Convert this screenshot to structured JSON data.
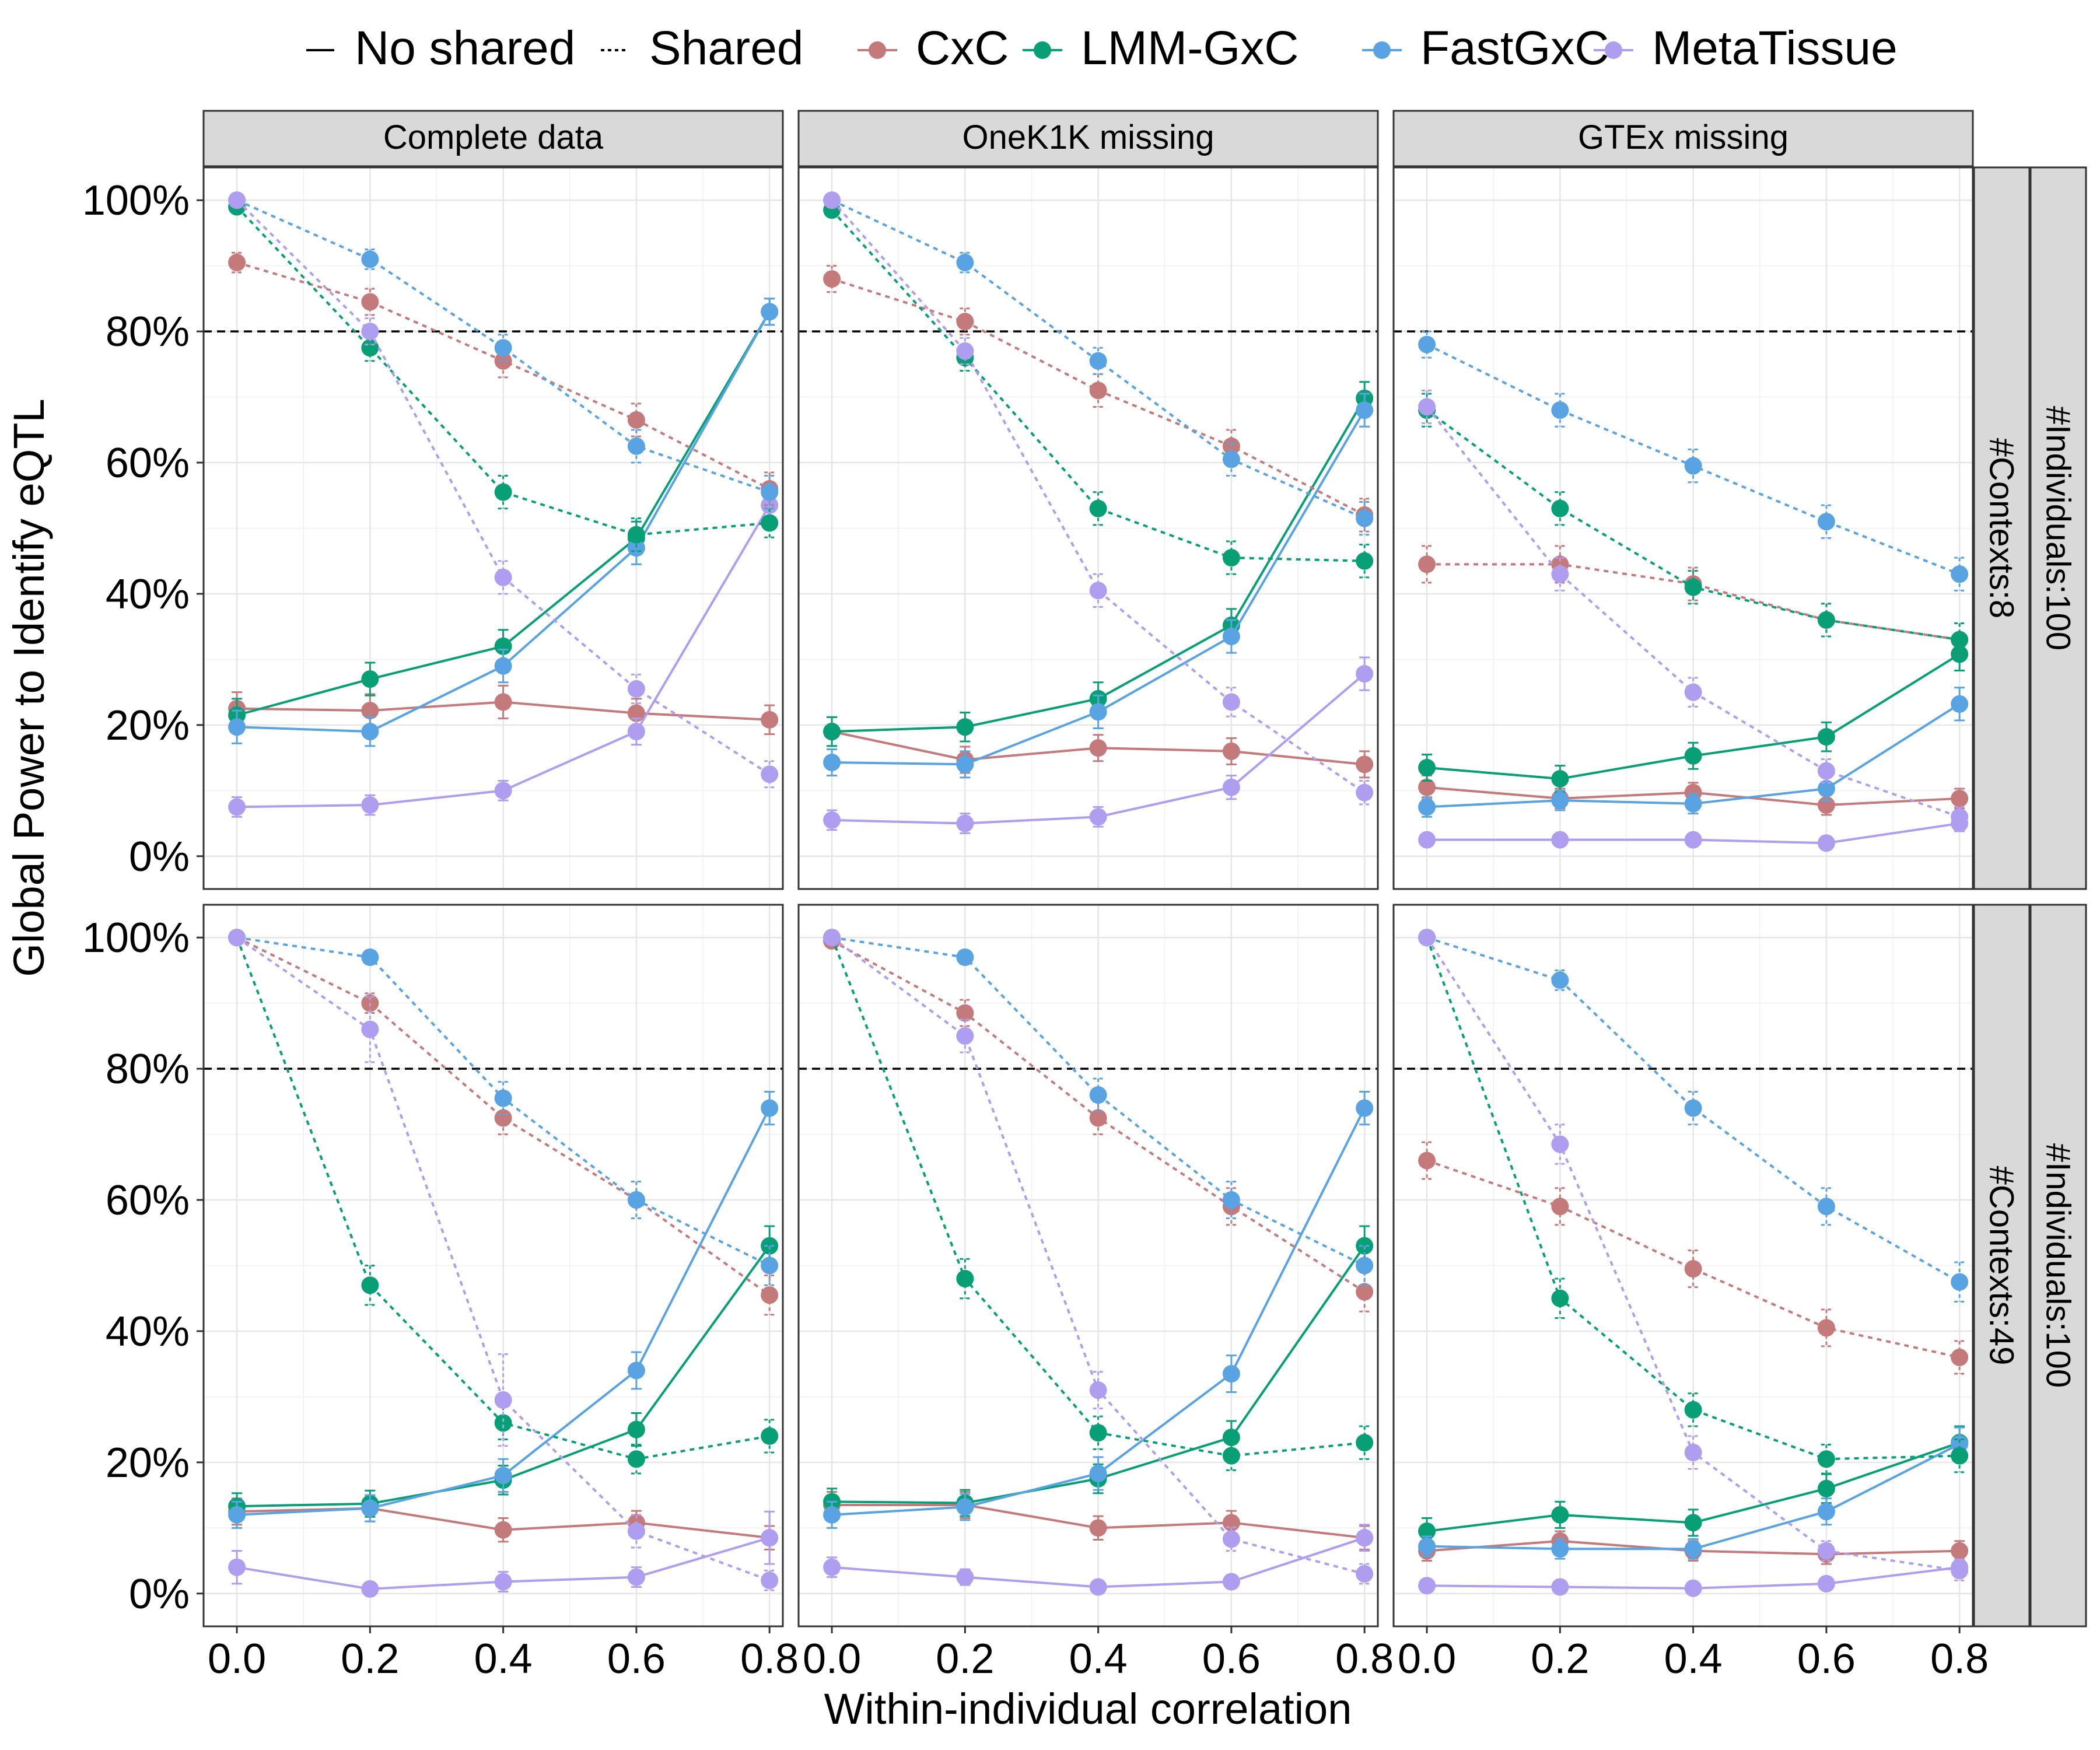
{
  "legend": {
    "linetypes": [
      {
        "label": "No shared",
        "dash": "solid"
      },
      {
        "label": "Shared",
        "dash": "dotted"
      }
    ],
    "methods": [
      {
        "label": "CxC",
        "color": "#C47A7A"
      },
      {
        "label": "LMM-GxC",
        "color": "#089F76"
      },
      {
        "label": "FastGxC",
        "color": "#5AA3E3"
      },
      {
        "label": "MetaTissue",
        "color": "#AF9DF0"
      }
    ]
  },
  "chart_data": {
    "type": "line",
    "xlabel": "Within-individual correlation",
    "ylabel": "Global Power to Identify eQTL",
    "x": [
      0.0,
      0.2,
      0.4,
      0.6,
      0.8
    ],
    "x_tick_labels": [
      "0.0",
      "0.2",
      "0.4",
      "0.6",
      "0.8"
    ],
    "ylim": [
      0,
      100
    ],
    "y_tick_labels": [
      "0%",
      "20%",
      "40%",
      "60%",
      "80%",
      "100%"
    ],
    "y_ticks": [
      0,
      20,
      40,
      60,
      80,
      100
    ],
    "reference_line": 80,
    "col_facets": [
      "Complete data",
      "OneK1K missing",
      "GTEx missing"
    ],
    "row_facets": [
      {
        "inner": "#Contexts:8",
        "outer": "#Individuals:100"
      },
      {
        "inner": "#Contexts:49",
        "outer": "#Individuals:100"
      }
    ],
    "panels": [
      {
        "row": 0,
        "col": 0,
        "series": [
          {
            "method": "CxC",
            "shared": false,
            "values": [
              22.5,
              22.2,
              23.5,
              21.8,
              20.8
            ],
            "err": [
              2.5,
              2.5,
              2.5,
              2.2,
              2.2
            ]
          },
          {
            "method": "LMM-GxC",
            "shared": false,
            "values": [
              21.5,
              27.0,
              32.0,
              48.5,
              83.0
            ],
            "err": [
              2.5,
              2.5,
              2.5,
              2.5,
              2.0
            ]
          },
          {
            "method": "FastGxC",
            "shared": false,
            "values": [
              19.7,
              19.0,
              29.0,
              47.0,
              83.0
            ],
            "err": [
              2.5,
              2.2,
              2.5,
              2.5,
              2.0
            ]
          },
          {
            "method": "MetaTissue",
            "shared": false,
            "values": [
              7.5,
              7.8,
              10.0,
              19.0,
              53.5
            ],
            "err": [
              1.5,
              1.5,
              1.5,
              2.0,
              2.5
            ]
          },
          {
            "method": "CxC",
            "shared": true,
            "values": [
              90.5,
              84.5,
              75.5,
              66.5,
              56.0
            ],
            "err": [
              1.5,
              2.0,
              2.5,
              2.5,
              2.5
            ]
          },
          {
            "method": "LMM-GxC",
            "shared": true,
            "values": [
              99.0,
              77.5,
              55.5,
              49.0,
              50.8
            ],
            "err": [
              0.5,
              2.0,
              2.5,
              2.5,
              2.2
            ]
          },
          {
            "method": "FastGxC",
            "shared": true,
            "values": [
              100.0,
              91.0,
              77.5,
              62.5,
              55.5
            ],
            "err": [
              0.5,
              1.5,
              2.0,
              2.5,
              2.5
            ]
          },
          {
            "method": "MetaTissue",
            "shared": true,
            "values": [
              100.0,
              80.0,
              42.5,
              25.5,
              12.5
            ],
            "err": [
              0.5,
              2.0,
              2.5,
              2.2,
              2.0
            ]
          }
        ]
      },
      {
        "row": 0,
        "col": 1,
        "series": [
          {
            "method": "CxC",
            "shared": false,
            "values": [
              19.0,
              14.7,
              16.5,
              16.0,
              14.0
            ],
            "err": [
              2.2,
              2.0,
              2.0,
              2.0,
              2.0
            ]
          },
          {
            "method": "LMM-GxC",
            "shared": false,
            "values": [
              19.0,
              19.7,
              24.0,
              35.2,
              69.8
            ],
            "err": [
              2.2,
              2.2,
              2.5,
              2.5,
              2.5
            ]
          },
          {
            "method": "FastGxC",
            "shared": false,
            "values": [
              14.3,
              14.0,
              22.0,
              33.5,
              68.0
            ],
            "err": [
              2.0,
              2.0,
              2.5,
              2.5,
              2.5
            ]
          },
          {
            "method": "MetaTissue",
            "shared": false,
            "values": [
              5.5,
              5.0,
              6.0,
              10.5,
              27.8
            ],
            "err": [
              1.5,
              1.5,
              1.5,
              1.8,
              2.5
            ]
          },
          {
            "method": "CxC",
            "shared": true,
            "values": [
              88.0,
              81.5,
              71.0,
              62.5,
              52.0
            ],
            "err": [
              2.0,
              2.0,
              2.5,
              2.5,
              2.5
            ]
          },
          {
            "method": "LMM-GxC",
            "shared": true,
            "values": [
              98.5,
              76.0,
              53.0,
              45.5,
              45.0
            ],
            "err": [
              0.8,
              2.0,
              2.5,
              2.5,
              2.5
            ]
          },
          {
            "method": "FastGxC",
            "shared": true,
            "values": [
              100.0,
              90.5,
              75.5,
              60.5,
              51.5
            ],
            "err": [
              0.5,
              1.5,
              2.0,
              2.5,
              2.5
            ]
          },
          {
            "method": "MetaTissue",
            "shared": true,
            "values": [
              100.0,
              77.0,
              40.5,
              23.5,
              9.7
            ],
            "err": [
              0.5,
              2.0,
              2.5,
              2.2,
              1.8
            ]
          }
        ]
      },
      {
        "row": 0,
        "col": 2,
        "series": [
          {
            "method": "CxC",
            "shared": false,
            "values": [
              10.5,
              8.8,
              9.7,
              7.8,
              8.8
            ],
            "err": [
              1.8,
              1.5,
              1.5,
              1.5,
              1.5
            ]
          },
          {
            "method": "LMM-GxC",
            "shared": false,
            "values": [
              13.5,
              11.8,
              15.3,
              18.2,
              30.8
            ],
            "err": [
              2.0,
              2.0,
              2.0,
              2.2,
              2.5
            ]
          },
          {
            "method": "FastGxC",
            "shared": false,
            "values": [
              7.5,
              8.5,
              8.0,
              10.3,
              23.2
            ],
            "err": [
              1.5,
              1.5,
              1.5,
              1.8,
              2.5
            ]
          },
          {
            "method": "MetaTissue",
            "shared": false,
            "values": [
              2.5,
              2.5,
              2.5,
              2.0,
              5.0
            ],
            "err": [
              0.8,
              0.8,
              0.8,
              0.8,
              1.2
            ]
          },
          {
            "method": "CxC",
            "shared": true,
            "values": [
              44.5,
              44.5,
              41.5,
              36.0,
              33.0
            ],
            "err": [
              2.8,
              2.8,
              2.5,
              2.5,
              2.5
            ]
          },
          {
            "method": "LMM-GxC",
            "shared": true,
            "values": [
              68.0,
              53.0,
              41.0,
              36.0,
              33.0
            ],
            "err": [
              2.5,
              2.5,
              2.5,
              2.5,
              2.5
            ]
          },
          {
            "method": "FastGxC",
            "shared": true,
            "values": [
              78.0,
              68.0,
              59.5,
              51.0,
              43.0
            ],
            "err": [
              2.0,
              2.5,
              2.5,
              2.5,
              2.5
            ]
          },
          {
            "method": "MetaTissue",
            "shared": true,
            "values": [
              68.5,
              43.0,
              25.0,
              13.0,
              6.0
            ],
            "err": [
              2.5,
              2.5,
              2.2,
              1.8,
              1.5
            ]
          }
        ]
      },
      {
        "row": 1,
        "col": 0,
        "series": [
          {
            "method": "CxC",
            "shared": false,
            "values": [
              12.5,
              13.0,
              9.7,
              10.8,
              8.5
            ],
            "err": [
              2.0,
              2.0,
              1.8,
              1.8,
              1.8
            ]
          },
          {
            "method": "LMM-GxC",
            "shared": false,
            "values": [
              13.3,
              13.7,
              17.3,
              25.0,
              53.0
            ],
            "err": [
              2.0,
              2.0,
              2.2,
              2.5,
              3.0
            ]
          },
          {
            "method": "FastGxC",
            "shared": false,
            "values": [
              12.0,
              13.0,
              18.0,
              34.0,
              74.0
            ],
            "err": [
              2.0,
              2.0,
              2.5,
              2.8,
              2.5
            ]
          },
          {
            "method": "MetaTissue",
            "shared": false,
            "values": [
              4.0,
              0.7,
              1.8,
              2.5,
              8.5
            ],
            "err": [
              2.5,
              0.5,
              1.5,
              1.5,
              4.0
            ]
          },
          {
            "method": "CxC",
            "shared": true,
            "values": [
              100.0,
              90.0,
              72.5,
              60.0,
              45.5
            ],
            "err": [
              0.5,
              1.5,
              2.5,
              2.8,
              3.0
            ]
          },
          {
            "method": "LMM-GxC",
            "shared": true,
            "values": [
              100.0,
              47.0,
              26.0,
              20.5,
              24.0
            ],
            "err": [
              0.5,
              3.0,
              2.5,
              2.2,
              2.5
            ]
          },
          {
            "method": "FastGxC",
            "shared": true,
            "values": [
              100.0,
              97.0,
              75.5,
              60.0,
              50.0
            ],
            "err": [
              0.5,
              1.0,
              2.5,
              2.8,
              3.0
            ]
          },
          {
            "method": "MetaTissue",
            "shared": true,
            "values": [
              100.0,
              86.0,
              29.5,
              9.5,
              2.0
            ],
            "err": [
              0.5,
              5.0,
              7.0,
              2.5,
              1.5
            ]
          }
        ]
      },
      {
        "row": 1,
        "col": 1,
        "series": [
          {
            "method": "CxC",
            "shared": false,
            "values": [
              13.5,
              13.5,
              10.0,
              10.8,
              8.5
            ],
            "err": [
              2.0,
              2.0,
              1.8,
              1.8,
              1.8
            ]
          },
          {
            "method": "LMM-GxC",
            "shared": false,
            "values": [
              14.0,
              13.8,
              17.5,
              23.8,
              53.0
            ],
            "err": [
              2.0,
              2.0,
              2.2,
              2.5,
              3.0
            ]
          },
          {
            "method": "FastGxC",
            "shared": false,
            "values": [
              12.0,
              13.2,
              18.3,
              33.5,
              74.0
            ],
            "err": [
              2.0,
              2.0,
              2.5,
              2.8,
              2.5
            ]
          },
          {
            "method": "MetaTissue",
            "shared": false,
            "values": [
              4.0,
              2.5,
              1.0,
              1.8,
              8.5
            ],
            "err": [
              1.5,
              1.2,
              0.8,
              1.0,
              2.0
            ]
          },
          {
            "method": "CxC",
            "shared": true,
            "values": [
              99.5,
              88.5,
              72.5,
              59.0,
              46.0
            ],
            "err": [
              0.5,
              2.0,
              2.5,
              2.8,
              3.0
            ]
          },
          {
            "method": "LMM-GxC",
            "shared": true,
            "values": [
              100.0,
              48.0,
              24.5,
              21.0,
              23.0
            ],
            "err": [
              0.5,
              3.0,
              2.5,
              2.2,
              2.5
            ]
          },
          {
            "method": "FastGxC",
            "shared": true,
            "values": [
              100.0,
              97.0,
              76.0,
              60.0,
              50.0
            ],
            "err": [
              0.5,
              1.0,
              2.5,
              2.8,
              3.0
            ]
          },
          {
            "method": "MetaTissue",
            "shared": true,
            "values": [
              100.0,
              85.0,
              31.0,
              8.3,
              3.0
            ],
            "err": [
              0.5,
              2.5,
              2.8,
              1.8,
              1.5
            ]
          }
        ]
      },
      {
        "row": 1,
        "col": 2,
        "series": [
          {
            "method": "CxC",
            "shared": false,
            "values": [
              6.5,
              8.0,
              6.5,
              6.0,
              6.5
            ],
            "err": [
              1.5,
              1.5,
              1.5,
              1.5,
              1.5
            ]
          },
          {
            "method": "LMM-GxC",
            "shared": false,
            "values": [
              9.5,
              12.0,
              10.8,
              16.0,
              23.0
            ],
            "err": [
              2.0,
              2.0,
              2.0,
              2.2,
              2.5
            ]
          },
          {
            "method": "FastGxC",
            "shared": false,
            "values": [
              7.2,
              6.8,
              6.8,
              12.5,
              22.8
            ],
            "err": [
              1.5,
              1.5,
              1.5,
              2.0,
              2.5
            ]
          },
          {
            "method": "MetaTissue",
            "shared": false,
            "values": [
              1.2,
              1.0,
              0.8,
              1.5,
              4.0
            ],
            "err": [
              0.5,
              0.5,
              0.5,
              0.8,
              1.2
            ]
          },
          {
            "method": "CxC",
            "shared": true,
            "values": [
              66.0,
              59.0,
              49.5,
              40.5,
              36.0
            ],
            "err": [
              2.8,
              2.8,
              2.8,
              2.8,
              2.5
            ]
          },
          {
            "method": "LMM-GxC",
            "shared": true,
            "values": [
              100.0,
              45.0,
              28.0,
              20.5,
              21.0
            ],
            "err": [
              0.5,
              3.0,
              2.5,
              2.2,
              2.5
            ]
          },
          {
            "method": "FastGxC",
            "shared": true,
            "values": [
              100.0,
              93.5,
              74.0,
              59.0,
              47.5
            ],
            "err": [
              0.5,
              1.5,
              2.5,
              2.8,
              3.0
            ]
          },
          {
            "method": "MetaTissue",
            "shared": true,
            "values": [
              100.0,
              68.5,
              21.5,
              6.5,
              3.5
            ],
            "err": [
              0.5,
              3.0,
              2.5,
              1.5,
              1.5
            ]
          }
        ]
      }
    ]
  }
}
